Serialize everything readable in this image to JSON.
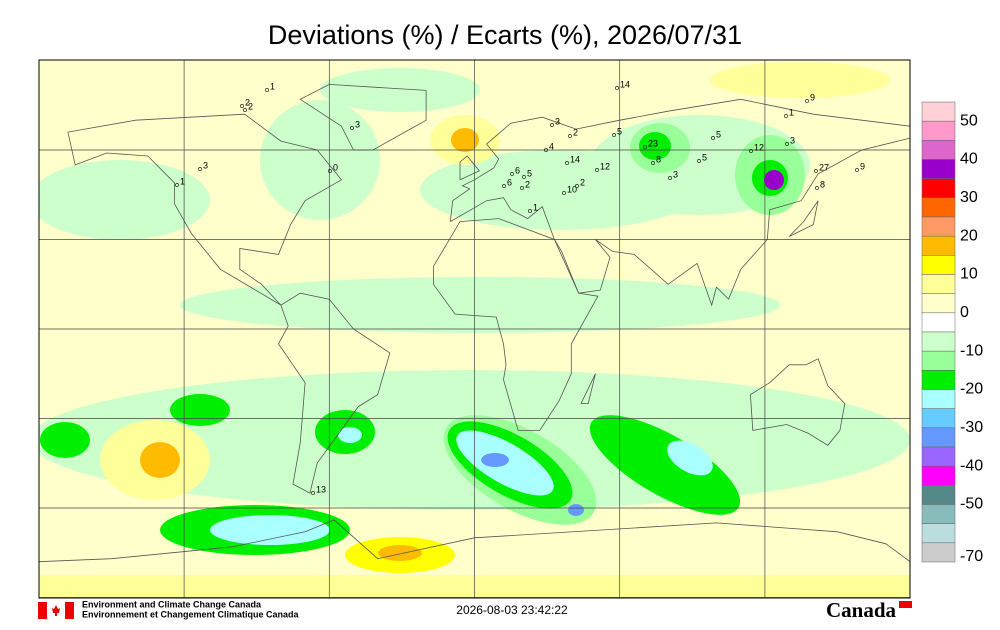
{
  "title": "Deviations (%) / Ecarts (%), 2026/07/31",
  "colorbar": {
    "labels": [
      "50",
      "40",
      "30",
      "20",
      "10",
      "0",
      "-10",
      "-20",
      "-30",
      "-40",
      "-50",
      "-70"
    ],
    "colors": [
      "#ffd0d8",
      "#ff99cc",
      "#dd66cc",
      "#9900cc",
      "#ff0000",
      "#ff6600",
      "#ff9966",
      "#ffbb00",
      "#ffff00",
      "#ffff99",
      "#ffffcc",
      "#ffffff",
      "#ccffcc",
      "#99ff99",
      "#00ee00",
      "#aaffff",
      "#66ccff",
      "#6699ff",
      "#9966ff",
      "#ff00ff",
      "#558888",
      "#88bbbb",
      "#bbdddd",
      "#cccccc"
    ]
  },
  "station_labels": [
    "1",
    "2",
    "2",
    "3",
    "3",
    "1",
    "0",
    "3",
    "2",
    "5",
    "4",
    "6",
    "5",
    "2",
    "14",
    "12",
    "10",
    "2",
    "1",
    "23",
    "8",
    "3",
    "5",
    "5",
    "12",
    "3",
    "9",
    "1",
    "27",
    "8",
    "9",
    "14",
    "6",
    "13"
  ],
  "footer": {
    "agency_en": "Environment and Climate Change Canada",
    "agency_fr": "Environnement et Changement Climatique Canada",
    "timestamp": "2026-08-03 23:42:22",
    "wordmark": "Canada"
  }
}
